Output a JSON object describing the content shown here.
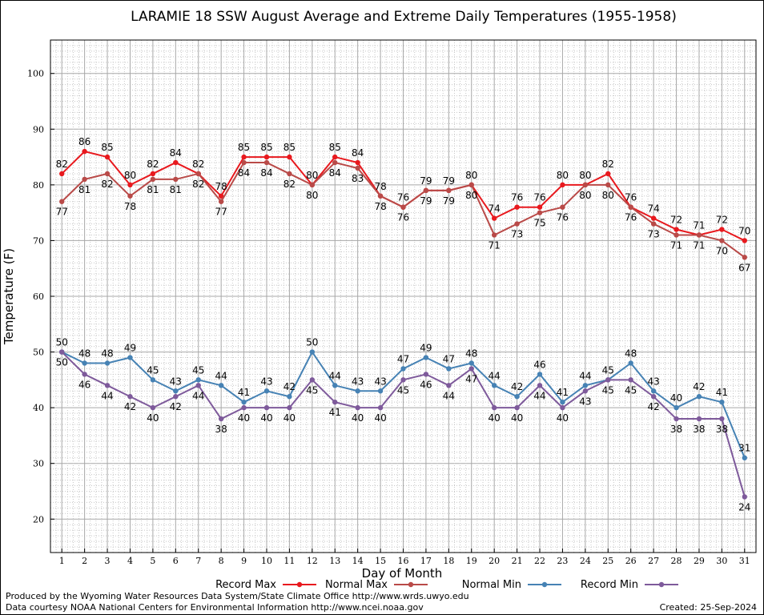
{
  "chart_data": {
    "type": "line",
    "title": "LARAMIE 18 SSW August Average and Extreme Daily Temperatures (1955-1958)",
    "xlabel": "Day of Month",
    "ylabel": "Temperature (F)",
    "x": [
      1,
      2,
      3,
      4,
      5,
      6,
      7,
      8,
      9,
      10,
      11,
      12,
      13,
      14,
      15,
      16,
      17,
      18,
      19,
      20,
      21,
      22,
      23,
      24,
      25,
      26,
      27,
      28,
      29,
      30,
      31
    ],
    "xlim": [
      0.5,
      31.5
    ],
    "ylim": [
      14,
      106
    ],
    "yticks": [
      20,
      30,
      40,
      50,
      60,
      70,
      80,
      90,
      100
    ],
    "grid": true,
    "legend_position": "bottom",
    "series": [
      {
        "name": "Record Max",
        "color": "#e8191e",
        "values": [
          82,
          86,
          85,
          80,
          82,
          84,
          82,
          78,
          85,
          85,
          85,
          80,
          85,
          84,
          78,
          76,
          79,
          79,
          80,
          74,
          76,
          76,
          80,
          80,
          82,
          76,
          74,
          72,
          71,
          72,
          70
        ]
      },
      {
        "name": "Normal Max",
        "color": "#b94a48",
        "values": [
          77,
          81,
          82,
          78,
          81,
          81,
          82,
          77,
          84,
          84,
          82,
          80,
          84,
          83,
          78,
          76,
          79,
          79,
          80,
          71,
          73,
          75,
          76,
          80,
          80,
          76,
          73,
          71,
          71,
          70,
          67
        ]
      },
      {
        "name": "Normal Min",
        "color": "#4682b4",
        "values": [
          50,
          48,
          48,
          49,
          45,
          43,
          45,
          44,
          41,
          43,
          42,
          50,
          44,
          43,
          43,
          47,
          49,
          47,
          48,
          44,
          42,
          46,
          41,
          44,
          45,
          48,
          43,
          40,
          42,
          41,
          31
        ]
      },
      {
        "name": "Record Min",
        "color": "#7e5a9b",
        "values": [
          50,
          46,
          44,
          42,
          40,
          42,
          44,
          38,
          40,
          40,
          40,
          45,
          41,
          40,
          40,
          45,
          46,
          44,
          47,
          40,
          40,
          44,
          40,
          43,
          45,
          45,
          42,
          38,
          38,
          38,
          24
        ]
      }
    ]
  },
  "footer": {
    "produced_by": "Produced by the Wyoming Water Resources Data System/State Climate Office http://www.wrds.uwyo.edu",
    "data_courtesy": "Data courtesy NOAA National Centers for Environmental Information http://www.ncei.noaa.gov",
    "created": "Created:  25-Sep-2024"
  }
}
